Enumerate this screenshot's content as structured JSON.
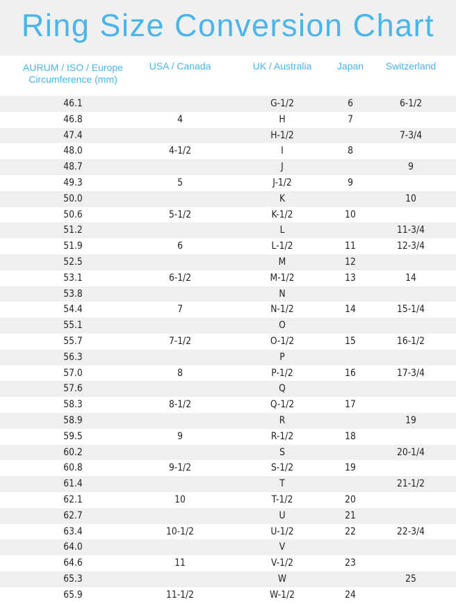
{
  "title": "Ring Size Conversion Chart",
  "colors": {
    "accent": "#4ab5ea",
    "stripe": "#efefef",
    "title_band": "#f0f0f0"
  },
  "columns": [
    "AURUM / ISO / Europe Circumference (mm)",
    "USA / Canada",
    "UK / Australia",
    "Japan",
    "Switzerland"
  ],
  "rows": [
    [
      "46.1",
      "",
      "G-1/2",
      "6",
      "6-1/2"
    ],
    [
      "46.8",
      "4",
      "H",
      "7",
      ""
    ],
    [
      "47.4",
      "",
      "H-1/2",
      "",
      "7-3/4"
    ],
    [
      "48.0",
      "4-1/2",
      "I",
      "8",
      ""
    ],
    [
      "48.7",
      "",
      "J",
      "",
      "9"
    ],
    [
      "49.3",
      "5",
      "J-1/2",
      "9",
      ""
    ],
    [
      "50.0",
      "",
      "K",
      "",
      "10"
    ],
    [
      "50.6",
      "5-1/2",
      "K-1/2",
      "10",
      ""
    ],
    [
      "51.2",
      "",
      "L",
      "",
      "11-3/4"
    ],
    [
      "51.9",
      "6",
      "L-1/2",
      "11",
      "12-3/4"
    ],
    [
      "52.5",
      "",
      "M",
      "12",
      ""
    ],
    [
      "53.1",
      "6-1/2",
      "M-1/2",
      "13",
      "14"
    ],
    [
      "53.8",
      "",
      "N",
      "",
      ""
    ],
    [
      "54.4",
      "7",
      "N-1/2",
      "14",
      "15-1/4"
    ],
    [
      "55.1",
      "",
      "O",
      "",
      ""
    ],
    [
      "55.7",
      "7-1/2",
      "O-1/2",
      "15",
      "16-1/2"
    ],
    [
      "56.3",
      "",
      "P",
      "",
      ""
    ],
    [
      "57.0",
      "8",
      "P-1/2",
      "16",
      "17-3/4"
    ],
    [
      "57.6",
      "",
      "Q",
      "",
      ""
    ],
    [
      "58.3",
      "8-1/2",
      "Q-1/2",
      "17",
      ""
    ],
    [
      "58.9",
      "",
      "R",
      "",
      "19"
    ],
    [
      "59.5",
      "9",
      "R-1/2",
      "18",
      ""
    ],
    [
      "60.2",
      "",
      "S",
      "",
      "20-1/4"
    ],
    [
      "60.8",
      "9-1/2",
      "S-1/2",
      "19",
      ""
    ],
    [
      "61.4",
      "",
      "T",
      "",
      "21-1/2"
    ],
    [
      "62.1",
      "10",
      "T-1/2",
      "20",
      ""
    ],
    [
      "62.7",
      "",
      "U",
      "21",
      ""
    ],
    [
      "63.4",
      "10-1/2",
      "U-1/2",
      "22",
      "22-3/4"
    ],
    [
      "64.0",
      "",
      "V",
      "",
      ""
    ],
    [
      "64.6",
      "11",
      "V-1/2",
      "23",
      ""
    ],
    [
      "65.3",
      "",
      "W",
      "",
      "25"
    ],
    [
      "65.9",
      "11-1/2",
      "W-1/2",
      "24",
      ""
    ]
  ]
}
